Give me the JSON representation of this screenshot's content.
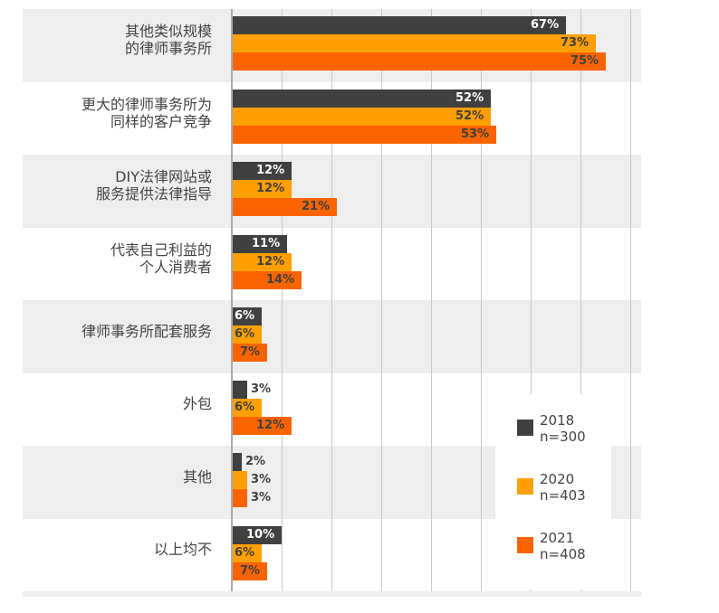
{
  "chart_data": {
    "type": "bar",
    "orientation": "horizontal",
    "title": "",
    "xlabel": "",
    "ylabel": "",
    "xlim": [
      0,
      80
    ],
    "grid": true,
    "grid_step": 10,
    "legend_position": "lower-right inside",
    "categories": [
      "其他类似规模\n的律师事务所",
      "更大的律师事务所为\n同样的客户竞争",
      "DIY法律网站或\n服务提供法律指导",
      "代表自己利益的\n个人消费者",
      "律师事务所配套服务",
      "外包",
      "其他",
      "以上均不"
    ],
    "series": [
      {
        "name": "2018 n=300",
        "color": "#404040",
        "values": [
          67,
          52,
          12,
          11,
          6,
          3,
          2,
          10
        ]
      },
      {
        "name": "2020 n=403",
        "color": "#ff9f00",
        "values": [
          73,
          52,
          12,
          12,
          6,
          6,
          3,
          6
        ]
      },
      {
        "name": "2021 n=408",
        "color": "#fa6400",
        "values": [
          75,
          53,
          21,
          14,
          7,
          12,
          3,
          7
        ]
      }
    ]
  },
  "categories": [
    {
      "lines": [
        "其他类似规模",
        "的律师事务所"
      ]
    },
    {
      "lines": [
        "更大的律师事务所为",
        "同样的客户竞争"
      ]
    },
    {
      "lines": [
        "DIY法律网站或",
        "服务提供法律指导"
      ]
    },
    {
      "lines": [
        "代表自己利益的",
        "个人消费者"
      ]
    },
    {
      "lines": [
        "律师事务所配套服务"
      ]
    },
    {
      "lines": [
        "外包"
      ]
    },
    {
      "lines": [
        "其他"
      ]
    },
    {
      "lines": [
        "以上均不"
      ]
    }
  ],
  "legend": [
    {
      "year": "2018",
      "n": "n=300",
      "color": "#404040"
    },
    {
      "year": "2020",
      "n": "n=403",
      "color": "#ff9f00"
    },
    {
      "year": "2021",
      "n": "n=408",
      "color": "#fa6400"
    }
  ],
  "colors": {
    "band": "#eeeeee",
    "grid": "#c8c8c8",
    "text": "#444444",
    "label_on_dark": "#ffffff",
    "label_on_light": "#404040"
  },
  "value_suffix": "%"
}
